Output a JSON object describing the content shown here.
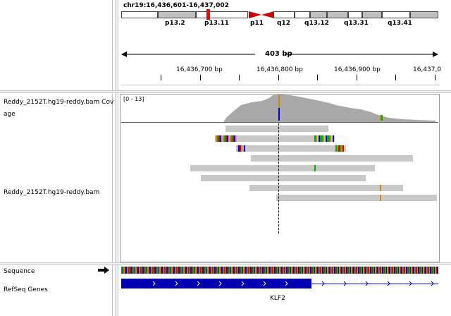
{
  "locus": "chr19:16,436,601-16,437,002",
  "cytobands": [
    "p13.2",
    "p13.11",
    "p11",
    "q12",
    "q13.12",
    "q13.31",
    "q13.41"
  ],
  "ruler": {
    "span_label": "403 bp",
    "ticks": [
      "16,436,700 bp",
      "16,436,800 bp",
      "16,436,900 bp",
      "16,437,0"
    ]
  },
  "tracks": {
    "coverage_label_line1": "Reddy_2152T.hg19-reddy.bam Cov",
    "coverage_label_line2": "age",
    "coverage_range": "[0 - 13]",
    "alignment_label": "Reddy_2152T.hg19-reddy.bam",
    "sequence_label": "Sequence",
    "refseq_label": "RefSeq Genes",
    "gene_name": "KLF2"
  },
  "colors": {
    "coverage": "#a8a8a8",
    "read": "#c8c8c8",
    "gene": "#0000b2",
    "centromere": "#cc0000",
    "base_A": "#00b000",
    "base_C": "#0000e0",
    "base_G": "#d18a00",
    "base_T": "#e00000"
  },
  "icons": {
    "strand_arrow": "right-arrow-icon"
  }
}
